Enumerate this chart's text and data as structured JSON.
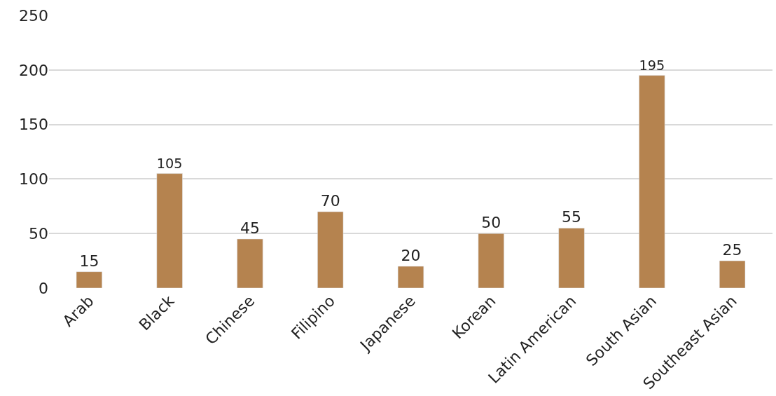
{
  "chart_data": {
    "type": "bar",
    "categories": [
      "Arab",
      "Black",
      "Chinese",
      "Filipino",
      "Japanese",
      "Korean",
      "Latin American",
      "South Asian",
      "Southeast Asian"
    ],
    "values": [
      15,
      105,
      45,
      70,
      20,
      50,
      55,
      195,
      25
    ],
    "color": "#b5834f",
    "ylim": [
      0,
      250
    ],
    "yticks": [
      0,
      50,
      100,
      150,
      200,
      250
    ],
    "grid": "y",
    "data_labels": true
  }
}
